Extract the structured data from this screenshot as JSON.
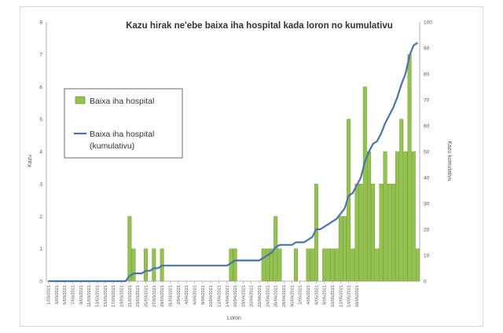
{
  "chart_data": {
    "type": "bar",
    "title": "Kazu hirak ne'ebe baixa iha hospital kada loron no kumulativu",
    "xlabel": "Loron",
    "ylabel": "Kazu",
    "y2label": "Kazu kumulativu",
    "ylim": [
      0,
      8
    ],
    "y2lim": [
      0,
      100
    ],
    "yticks": [
      "0",
      "1",
      "2",
      "3",
      "4",
      "5",
      "6",
      "7",
      "8"
    ],
    "y2ticks": [
      "0",
      "10",
      "20",
      "30",
      "40",
      "50",
      "60",
      "70",
      "80",
      "90",
      "100"
    ],
    "xticks": [
      "1/03/2021",
      "3/03/2021",
      "5/03/2021",
      "7/03/2021",
      "9/03/2021",
      "11/03/2021",
      "13/03/2021",
      "15/03/2021",
      "17/03/2021",
      "19/03/2021",
      "21/03/2021",
      "23/03/2021",
      "25/03/2021",
      "27/03/2021",
      "29/03/2021",
      "31/03/2021",
      "2/04/2021",
      "4/04/2021",
      "6/04/2021",
      "8/04/2021",
      "10/04/2021",
      "12/04/2021",
      "14/04/2021",
      "16/04/2021",
      "18/04/2021",
      "20/04/2021",
      "22/04/2021",
      "24/04/2021",
      "26/04/2021",
      "28/04/2021",
      "30/04/2021",
      "2/05/2021",
      "4/05/2021",
      "6/05/2021",
      "8/05/2021",
      "10/05/2021",
      "12/05/2021",
      "14/05/2021",
      "16/05/2021"
    ],
    "legend": "top-left",
    "grid": false,
    "bar_color": "#92c34a",
    "bar_border": "#5b7f22",
    "line_color": "#4a72b0",
    "series": [
      {
        "name": "Baixa iha hospital",
        "type": "bar",
        "axis": "left",
        "values": [
          0,
          0,
          0,
          0,
          0,
          0,
          0,
          0,
          0,
          0,
          0,
          0,
          0,
          0,
          0,
          0,
          0,
          0,
          0,
          0,
          2,
          1,
          0,
          0,
          1,
          0,
          1,
          0,
          1,
          0,
          0,
          0,
          0,
          0,
          0,
          0,
          0,
          0,
          0,
          0,
          0,
          0,
          0,
          0,
          0,
          1,
          1,
          0,
          0,
          0,
          0,
          0,
          0,
          1,
          1,
          1,
          2,
          1,
          0,
          0,
          0,
          1,
          0,
          0,
          1,
          1,
          3,
          0,
          1,
          1,
          1,
          1,
          2,
          2,
          5,
          1,
          3,
          3,
          6,
          4,
          3,
          1,
          3,
          4,
          3,
          3,
          4,
          5,
          4,
          7,
          4,
          1
        ]
      },
      {
        "name": "Baixa iha hospital (kumulativu)",
        "type": "line",
        "axis": "right",
        "values": [
          0,
          0,
          0,
          0,
          0,
          0,
          0,
          0,
          0,
          0,
          0,
          0,
          0,
          0,
          0,
          0,
          0,
          0,
          0,
          0,
          2,
          3,
          3,
          3,
          4,
          4,
          5,
          5,
          6,
          6,
          6,
          6,
          6,
          6,
          6,
          6,
          6,
          6,
          6,
          6,
          6,
          6,
          6,
          6,
          6,
          7,
          8,
          8,
          8,
          8,
          8,
          8,
          8,
          9,
          10,
          11,
          13,
          14,
          14,
          14,
          14,
          15,
          15,
          15,
          16,
          17,
          20,
          20,
          21,
          22,
          23,
          24,
          26,
          28,
          33,
          34,
          37,
          40,
          46,
          50,
          53,
          54,
          57,
          61,
          64,
          67,
          71,
          76,
          80,
          87,
          91,
          92
        ]
      }
    ]
  }
}
